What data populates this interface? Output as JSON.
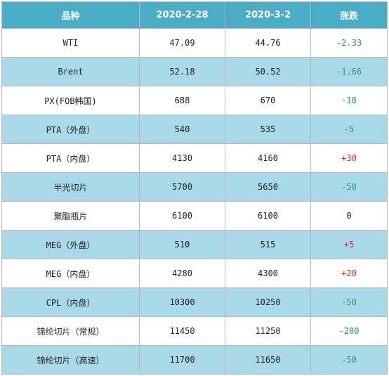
{
  "table": {
    "headers": [
      "品种",
      "2020-2-28",
      "2020-3-2",
      "涨跌"
    ],
    "rows": [
      {
        "name": "WTI",
        "d1": "47.09",
        "d2": "44.76",
        "change": "-2.33",
        "dir": "neg"
      },
      {
        "name": "Brent",
        "d1": "52.18",
        "d2": "50.52",
        "change": "-1.66",
        "dir": "neg"
      },
      {
        "name": "PX(FOB韩国)",
        "d1": "688",
        "d2": "670",
        "change": "-18",
        "dir": "neg"
      },
      {
        "name": "PTA（外盘）",
        "d1": "540",
        "d2": "535",
        "change": "-5",
        "dir": "neg"
      },
      {
        "name": "PTA（内盘）",
        "d1": "4130",
        "d2": "4160",
        "change": "+30",
        "dir": "pos"
      },
      {
        "name": "半光切片",
        "d1": "5700",
        "d2": "5650",
        "change": "-50",
        "dir": "neg"
      },
      {
        "name": "聚酯瓶片",
        "d1": "6100",
        "d2": "6100",
        "change": "0",
        "dir": "zero"
      },
      {
        "name": "MEG（外盘）",
        "d1": "510",
        "d2": "515",
        "change": "+5",
        "dir": "pos"
      },
      {
        "name": "MEG（内盘）",
        "d1": "4280",
        "d2": "4300",
        "change": "+20",
        "dir": "pos"
      },
      {
        "name": "CPL（内盘）",
        "d1": "10300",
        "d2": "10250",
        "change": "-50",
        "dir": "neg"
      },
      {
        "name": "锦纶切片（常规）",
        "d1": "11450",
        "d2": "11250",
        "change": "-200",
        "dir": "neg"
      },
      {
        "name": "锦纶切片（高速）",
        "d1": "11700",
        "d2": "11650",
        "change": "-50",
        "dir": "neg"
      }
    ]
  }
}
